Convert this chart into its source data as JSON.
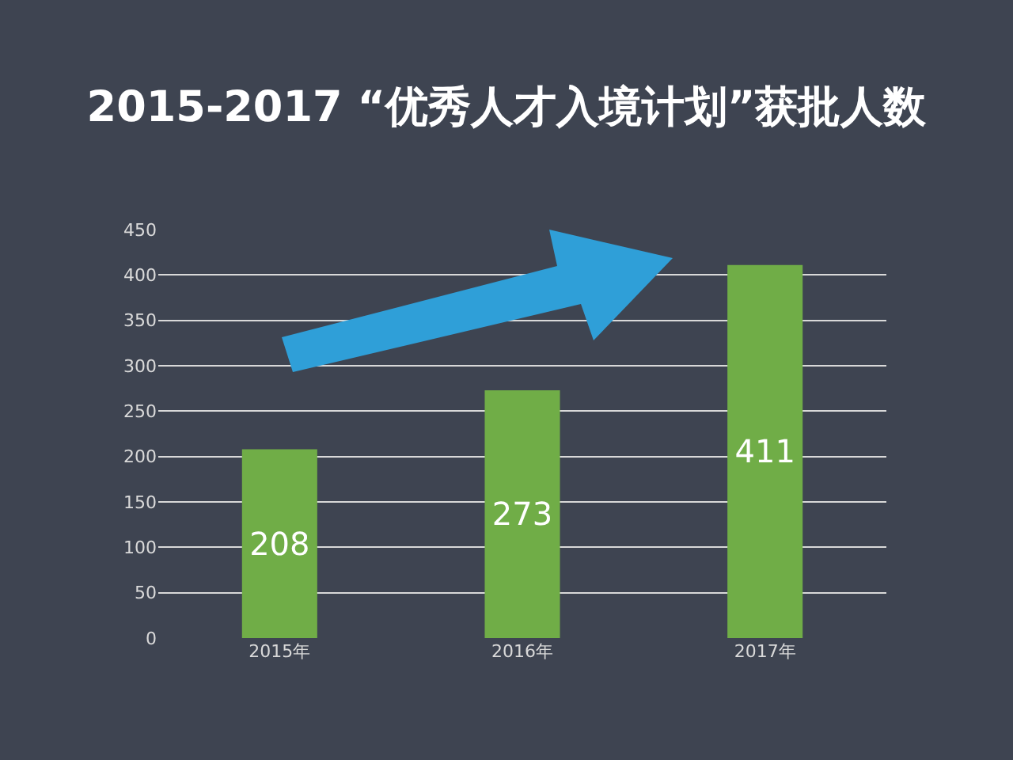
{
  "chart_data": {
    "type": "bar",
    "title": "2015-2017 “优秀人才入境计划”获批人数",
    "categories": [
      "2015年",
      "2016年",
      "2017年"
    ],
    "values": [
      208,
      273,
      411
    ],
    "color": "#70ad47",
    "ylim": [
      0,
      450
    ],
    "yticks": [
      0,
      50,
      100,
      150,
      200,
      250,
      300,
      350,
      400,
      450
    ],
    "grid": "y",
    "data_labels": true
  }
}
